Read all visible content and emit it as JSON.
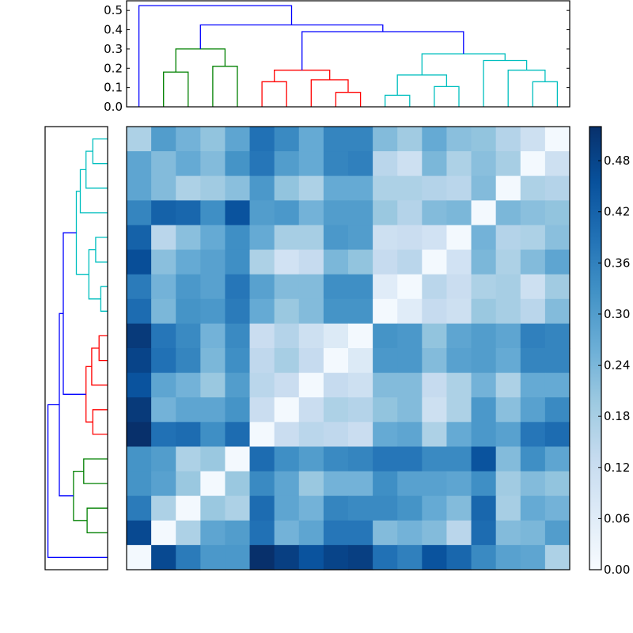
{
  "chart_data": {
    "type": "heatmap",
    "title": "",
    "description": "Hierarchically clustered distance matrix with row and column dendrograms",
    "n": 18,
    "colormap": "Blues",
    "vmin": 0.0,
    "vmax": 0.52,
    "colorbar": {
      "ticks": [
        0.0,
        0.06,
        0.12,
        0.18,
        0.24,
        0.3,
        0.36,
        0.42,
        0.48
      ],
      "tick_labels": [
        "0.00",
        "0.06",
        "0.12",
        "0.18",
        "0.24",
        "0.30",
        "0.36",
        "0.42",
        "0.48"
      ]
    },
    "top_dendrogram": {
      "yticks": [
        0.0,
        0.1,
        0.2,
        0.3,
        0.4,
        0.5
      ],
      "ytick_labels": [
        "0.0",
        "0.1",
        "0.2",
        "0.3",
        "0.4",
        "0.5"
      ],
      "ylim": [
        0.0,
        0.55
      ],
      "colors": {
        "green": "#008000",
        "red": "#ff0000",
        "cyan": "#00bfbf",
        "blue": "#0000ff"
      },
      "links": [
        {
          "x": [
            1,
            1,
            2,
            2
          ],
          "y": [
            0.0,
            0.18,
            0.18,
            0.0
          ],
          "color": "green"
        },
        {
          "x": [
            3,
            3,
            4,
            4
          ],
          "y": [
            0.0,
            0.21,
            0.21,
            0.0
          ],
          "color": "green"
        },
        {
          "x": [
            1.5,
            1.5,
            3.5,
            3.5
          ],
          "y": [
            0.18,
            0.3,
            0.3,
            0.21
          ],
          "color": "green"
        },
        {
          "x": [
            5,
            5,
            6,
            6
          ],
          "y": [
            0.0,
            0.13,
            0.13,
            0.0
          ],
          "color": "red"
        },
        {
          "x": [
            8,
            8,
            9,
            9
          ],
          "y": [
            0.0,
            0.075,
            0.075,
            0.0
          ],
          "color": "red"
        },
        {
          "x": [
            7,
            7,
            8.5,
            8.5
          ],
          "y": [
            0.0,
            0.14,
            0.14,
            0.075
          ],
          "color": "red"
        },
        {
          "x": [
            5.5,
            5.5,
            7.75,
            7.75
          ],
          "y": [
            0.13,
            0.19,
            0.19,
            0.14
          ],
          "color": "red"
        },
        {
          "x": [
            10,
            10,
            11,
            11
          ],
          "y": [
            0.0,
            0.06,
            0.06,
            0.0
          ],
          "color": "cyan"
        },
        {
          "x": [
            12,
            12,
            13,
            13
          ],
          "y": [
            0.0,
            0.105,
            0.105,
            0.0
          ],
          "color": "cyan"
        },
        {
          "x": [
            10.5,
            10.5,
            12.5,
            12.5
          ],
          "y": [
            0.06,
            0.165,
            0.165,
            0.105
          ],
          "color": "cyan"
        },
        {
          "x": [
            16,
            16,
            17,
            17
          ],
          "y": [
            0.0,
            0.13,
            0.13,
            0.0
          ],
          "color": "cyan"
        },
        {
          "x": [
            15,
            15,
            16.5,
            16.5
          ],
          "y": [
            0.0,
            0.19,
            0.19,
            0.13
          ],
          "color": "cyan"
        },
        {
          "x": [
            14,
            14,
            15.75,
            15.75
          ],
          "y": [
            0.0,
            0.24,
            0.24,
            0.19
          ],
          "color": "cyan"
        },
        {
          "x": [
            11.5,
            11.5,
            14.875,
            14.875
          ],
          "y": [
            0.165,
            0.275,
            0.275,
            0.24
          ],
          "color": "cyan"
        },
        {
          "x": [
            6.625,
            6.625,
            13.1875,
            13.1875
          ],
          "y": [
            0.19,
            0.39,
            0.39,
            0.275
          ],
          "color": "blue"
        },
        {
          "x": [
            2.5,
            2.5,
            9.90625,
            9.90625
          ],
          "y": [
            0.3,
            0.425,
            0.425,
            0.39
          ],
          "color": "blue"
        },
        {
          "x": [
            0,
            0,
            6.203125,
            6.203125
          ],
          "y": [
            0.0,
            0.525,
            0.525,
            0.425
          ],
          "color": "blue"
        }
      ]
    },
    "matrix": [
      [
        0.17,
        0.3,
        0.25,
        0.21,
        0.28,
        0.39,
        0.34,
        0.27,
        0.35,
        0.35,
        0.23,
        0.19,
        0.27,
        0.22,
        0.21,
        0.16,
        0.11,
        0.01
      ],
      [
        0.28,
        0.23,
        0.27,
        0.23,
        0.32,
        0.38,
        0.3,
        0.27,
        0.35,
        0.36,
        0.15,
        0.11,
        0.24,
        0.17,
        0.22,
        0.18,
        0.01,
        0.11
      ],
      [
        0.28,
        0.23,
        0.17,
        0.19,
        0.22,
        0.31,
        0.21,
        0.17,
        0.27,
        0.27,
        0.17,
        0.17,
        0.16,
        0.15,
        0.23,
        0.01,
        0.17,
        0.16
      ],
      [
        0.35,
        0.42,
        0.41,
        0.33,
        0.45,
        0.3,
        0.31,
        0.25,
        0.3,
        0.3,
        0.2,
        0.16,
        0.23,
        0.24,
        0.01,
        0.24,
        0.22,
        0.21
      ],
      [
        0.42,
        0.15,
        0.22,
        0.27,
        0.33,
        0.27,
        0.18,
        0.18,
        0.31,
        0.3,
        0.11,
        0.12,
        0.1,
        0.01,
        0.25,
        0.16,
        0.17,
        0.22
      ],
      [
        0.46,
        0.22,
        0.27,
        0.29,
        0.33,
        0.17,
        0.1,
        0.13,
        0.24,
        0.21,
        0.13,
        0.15,
        0.01,
        0.1,
        0.24,
        0.17,
        0.23,
        0.28
      ],
      [
        0.37,
        0.25,
        0.31,
        0.29,
        0.38,
        0.29,
        0.23,
        0.23,
        0.33,
        0.33,
        0.06,
        0.01,
        0.15,
        0.12,
        0.17,
        0.18,
        0.11,
        0.19
      ],
      [
        0.4,
        0.24,
        0.32,
        0.31,
        0.37,
        0.27,
        0.2,
        0.23,
        0.32,
        0.32,
        0.01,
        0.06,
        0.13,
        0.11,
        0.2,
        0.18,
        0.15,
        0.23
      ],
      [
        0.5,
        0.38,
        0.34,
        0.25,
        0.34,
        0.12,
        0.16,
        0.11,
        0.07,
        0.01,
        0.32,
        0.31,
        0.21,
        0.28,
        0.3,
        0.28,
        0.36,
        0.35
      ],
      [
        0.48,
        0.39,
        0.35,
        0.24,
        0.33,
        0.14,
        0.18,
        0.13,
        0.01,
        0.07,
        0.31,
        0.31,
        0.23,
        0.29,
        0.3,
        0.27,
        0.35,
        0.35
      ],
      [
        0.45,
        0.28,
        0.25,
        0.2,
        0.3,
        0.15,
        0.12,
        0.01,
        0.13,
        0.11,
        0.23,
        0.23,
        0.13,
        0.17,
        0.25,
        0.17,
        0.27,
        0.27
      ],
      [
        0.5,
        0.25,
        0.28,
        0.28,
        0.32,
        0.12,
        0.01,
        0.12,
        0.17,
        0.16,
        0.21,
        0.23,
        0.11,
        0.17,
        0.31,
        0.22,
        0.29,
        0.34
      ],
      [
        0.52,
        0.39,
        0.4,
        0.33,
        0.4,
        0.01,
        0.12,
        0.15,
        0.14,
        0.12,
        0.27,
        0.28,
        0.17,
        0.27,
        0.31,
        0.29,
        0.38,
        0.4
      ],
      [
        0.32,
        0.3,
        0.17,
        0.2,
        0.01,
        0.4,
        0.33,
        0.3,
        0.34,
        0.35,
        0.38,
        0.38,
        0.34,
        0.34,
        0.45,
        0.23,
        0.33,
        0.28
      ],
      [
        0.32,
        0.29,
        0.2,
        0.01,
        0.2,
        0.34,
        0.28,
        0.2,
        0.25,
        0.25,
        0.33,
        0.29,
        0.29,
        0.28,
        0.33,
        0.19,
        0.23,
        0.21
      ],
      [
        0.37,
        0.17,
        0.01,
        0.2,
        0.17,
        0.4,
        0.28,
        0.25,
        0.35,
        0.34,
        0.34,
        0.32,
        0.27,
        0.23,
        0.41,
        0.18,
        0.27,
        0.25
      ],
      [
        0.47,
        0.01,
        0.17,
        0.28,
        0.3,
        0.39,
        0.25,
        0.28,
        0.38,
        0.38,
        0.23,
        0.25,
        0.23,
        0.15,
        0.4,
        0.23,
        0.24,
        0.3
      ],
      [
        0.01,
        0.47,
        0.37,
        0.31,
        0.31,
        0.52,
        0.49,
        0.45,
        0.48,
        0.49,
        0.39,
        0.36,
        0.45,
        0.41,
        0.34,
        0.29,
        0.28,
        0.17
      ]
    ]
  }
}
